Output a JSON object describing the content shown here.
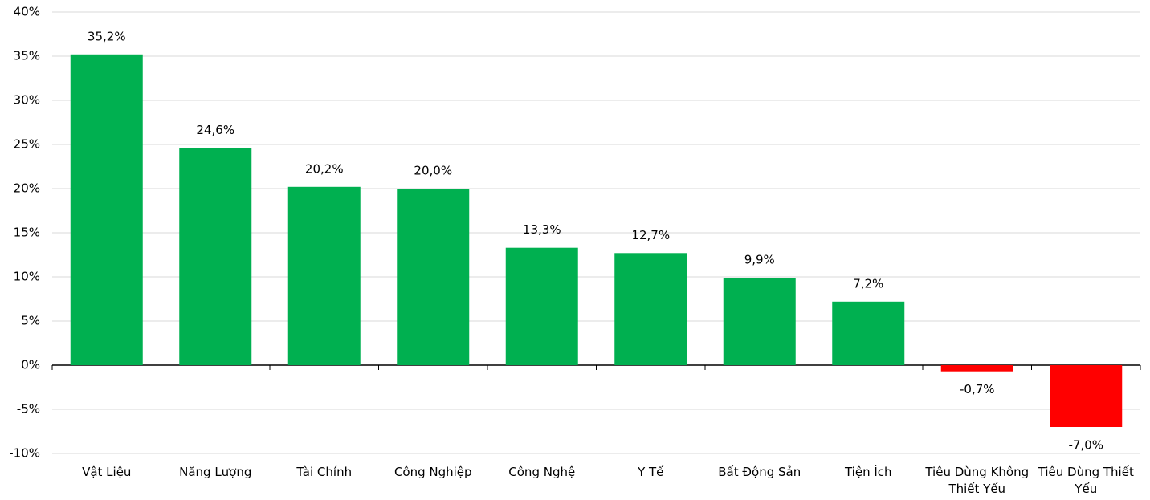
{
  "chart_data": {
    "type": "bar",
    "categories": [
      "Vật Liệu",
      "Năng Lượng",
      "Tài Chính",
      "Công Nghiệp",
      "Công Nghệ",
      "Y Tế",
      "Bất Động Sản",
      "Tiện Ích",
      "Tiêu Dùng Không Thiết Yếu",
      "Tiêu Dùng Thiết Yếu"
    ],
    "values": [
      35.2,
      24.6,
      20.2,
      20.0,
      13.3,
      12.7,
      9.9,
      7.2,
      -0.7,
      -7.0
    ],
    "value_labels": [
      "35,2%",
      "24,6%",
      "20,2%",
      "20,0%",
      "13,3%",
      "12,7%",
      "9,9%",
      "7,2%",
      "-0,7%",
      "-7,0%"
    ],
    "colors": [
      "#00b050",
      "#00b050",
      "#00b050",
      "#00b050",
      "#00b050",
      "#00b050",
      "#00b050",
      "#00b050",
      "#ff0000",
      "#ff0000"
    ],
    "ylim": [
      -10,
      40
    ],
    "yticks": [
      {
        "value": -10,
        "label": "-10%"
      },
      {
        "value": -5,
        "label": "-5%"
      },
      {
        "value": 0,
        "label": "0%"
      },
      {
        "value": 5,
        "label": "5%"
      },
      {
        "value": 10,
        "label": "10%"
      },
      {
        "value": 15,
        "label": "15%"
      },
      {
        "value": 20,
        "label": "20%"
      },
      {
        "value": 25,
        "label": "25%"
      },
      {
        "value": 30,
        "label": "30%"
      },
      {
        "value": 35,
        "label": "35%"
      },
      {
        "value": 40,
        "label": "40%"
      }
    ],
    "grid": true
  }
}
